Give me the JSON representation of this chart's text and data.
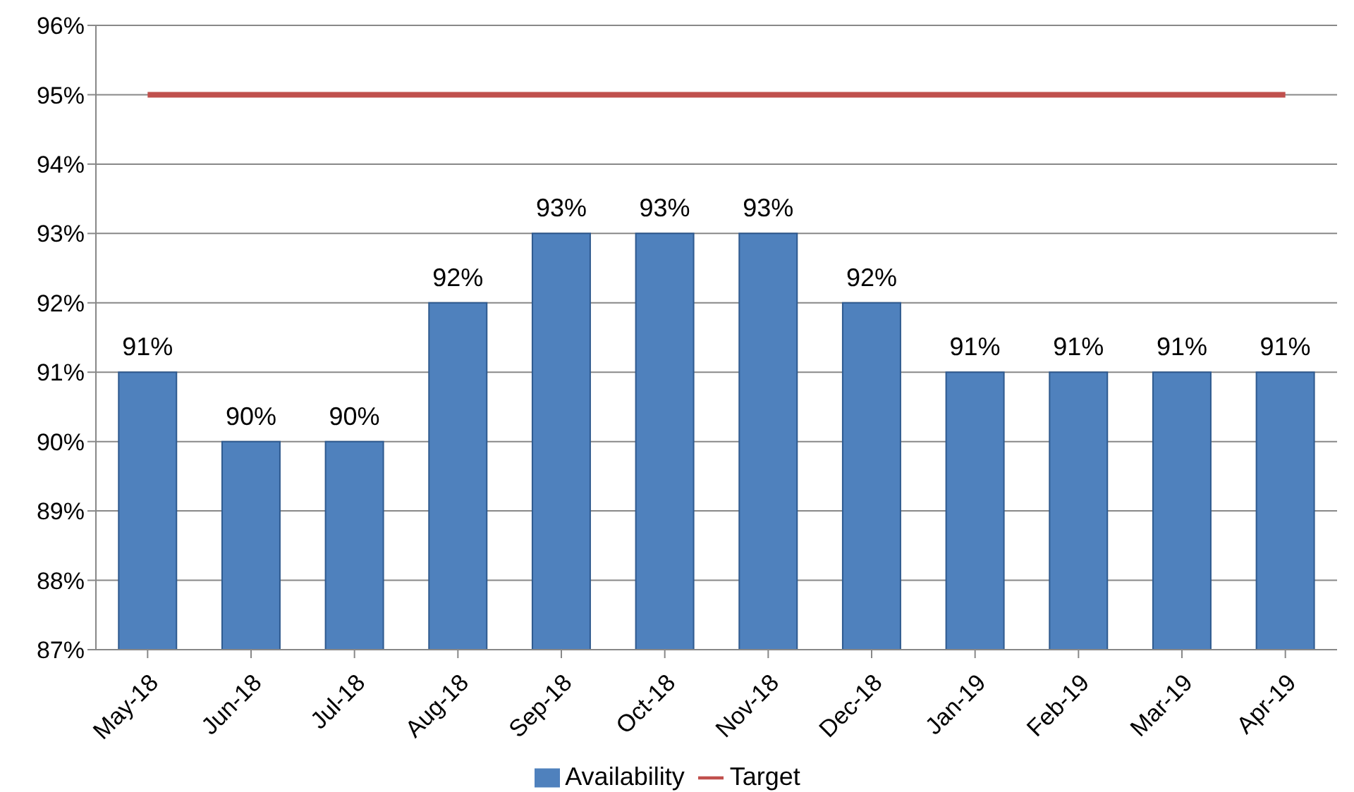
{
  "chart_data": {
    "type": "bar",
    "categories": [
      "May-18",
      "Jun-18",
      "Jul-18",
      "Aug-18",
      "Sep-18",
      "Oct-18",
      "Nov-18",
      "Dec-18",
      "Jan-19",
      "Feb-19",
      "Mar-19",
      "Apr-19"
    ],
    "series": [
      {
        "name": "Availability",
        "color": "#4f81bd",
        "values": [
          91,
          90,
          90,
          92,
          93,
          93,
          93,
          92,
          91,
          91,
          91,
          91
        ],
        "value_labels": [
          "91%",
          "90%",
          "90%",
          "92%",
          "93%",
          "93%",
          "93%",
          "92%",
          "91%",
          "91%",
          "91%",
          "91%"
        ]
      },
      {
        "name": "Target",
        "type": "line",
        "color": "#c0504d",
        "marker": "none",
        "values": [
          95,
          95,
          95,
          95,
          95,
          95,
          95,
          95,
          95,
          95,
          95,
          95
        ]
      }
    ],
    "ylim": [
      87,
      96
    ],
    "yticks": [
      {
        "value": 87,
        "label": "87%"
      },
      {
        "value": 88,
        "label": "88%"
      },
      {
        "value": 89,
        "label": "89%"
      },
      {
        "value": 90,
        "label": "90%"
      },
      {
        "value": 91,
        "label": "91%"
      },
      {
        "value": 92,
        "label": "92%"
      },
      {
        "value": 93,
        "label": "93%"
      },
      {
        "value": 94,
        "label": "94%"
      },
      {
        "value": 95,
        "label": "95%"
      },
      {
        "value": 96,
        "label": "96%"
      }
    ],
    "grid": "y",
    "legend": "bottom"
  }
}
